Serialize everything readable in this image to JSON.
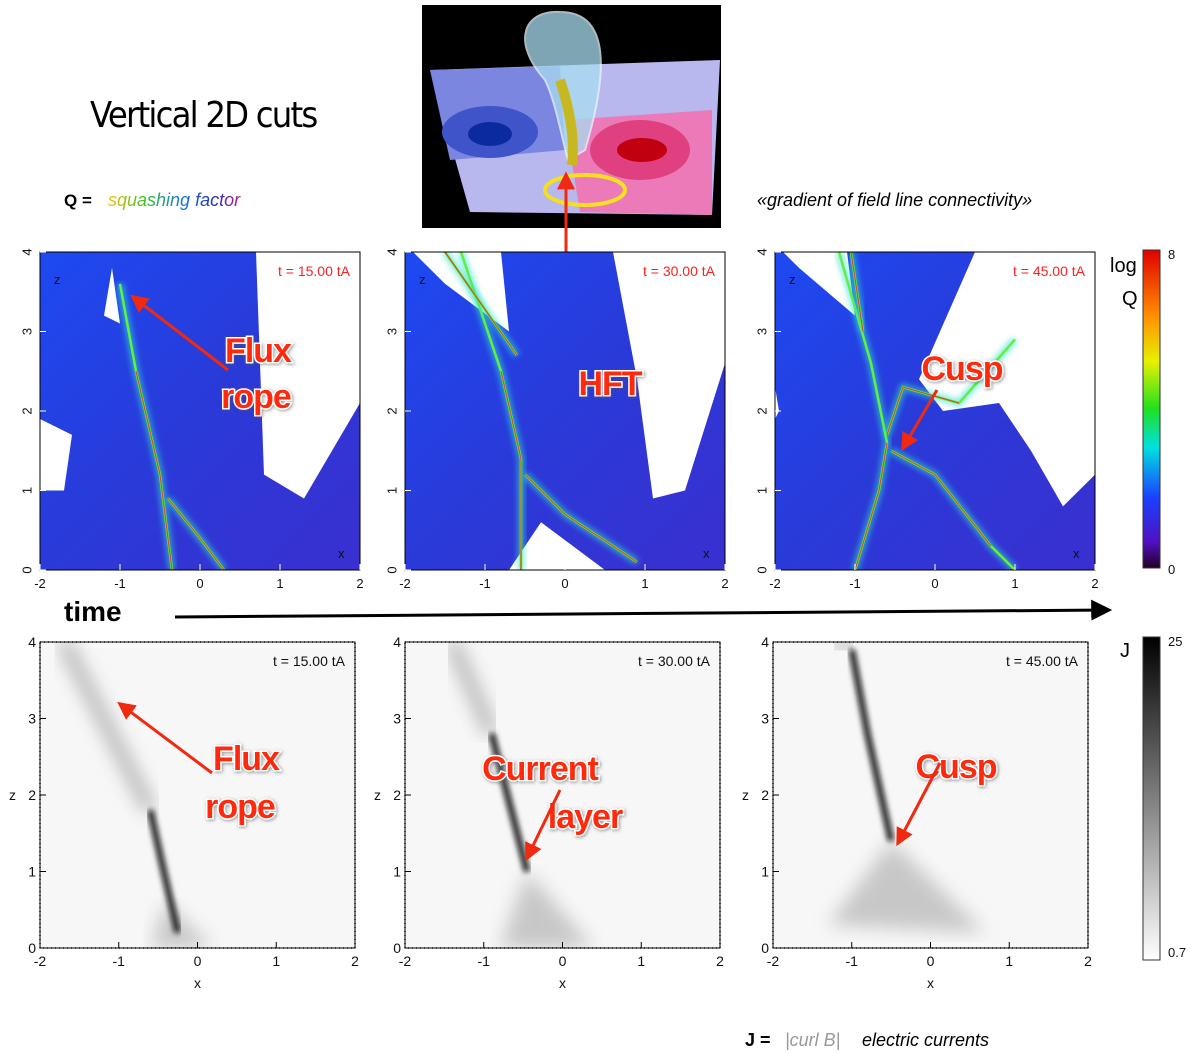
{
  "header": {
    "title": "Vertical 2D cuts",
    "q_label": "Q =",
    "q_desc": "squashing factor",
    "q_note": "«gradient of field line connectivity»"
  },
  "top_row": {
    "x_ticks": [
      "-2",
      "-1",
      "0",
      "1",
      "2"
    ],
    "y_ticks": [
      "0",
      "1",
      "2",
      "3",
      "4"
    ],
    "x_label": "x",
    "y_label": "z",
    "panels": [
      {
        "time": "t = 15.00 tA",
        "annotation": [
          "Flux",
          "rope"
        ]
      },
      {
        "time": "t = 30.00 tA",
        "annotation": [
          "HFT"
        ]
      },
      {
        "time": "t = 45.00 tA",
        "annotation": [
          "Cusp"
        ]
      }
    ],
    "colorbar": {
      "label": [
        "log",
        "Q"
      ],
      "max": "8",
      "min": "0"
    }
  },
  "time_label": "time",
  "bottom_row": {
    "x_ticks": [
      "-2",
      "-1",
      "0",
      "1",
      "2"
    ],
    "y_ticks": [
      "0",
      "1",
      "2",
      "3",
      "4"
    ],
    "x_label": "x",
    "y_label": "z",
    "panels": [
      {
        "time": "t = 15.00 tA",
        "annotation": [
          "Flux",
          "rope"
        ]
      },
      {
        "time": "t = 30.00 tA",
        "annotation": [
          "Current",
          "layer"
        ]
      },
      {
        "time": "t = 45.00 tA",
        "annotation": [
          "Cusp"
        ]
      }
    ],
    "colorbar": {
      "label": "J",
      "max": "25",
      "min": "0.7"
    }
  },
  "footer": {
    "j_label": "J =",
    "j_desc": "|curl B|",
    "j_note": "electric currents"
  }
}
